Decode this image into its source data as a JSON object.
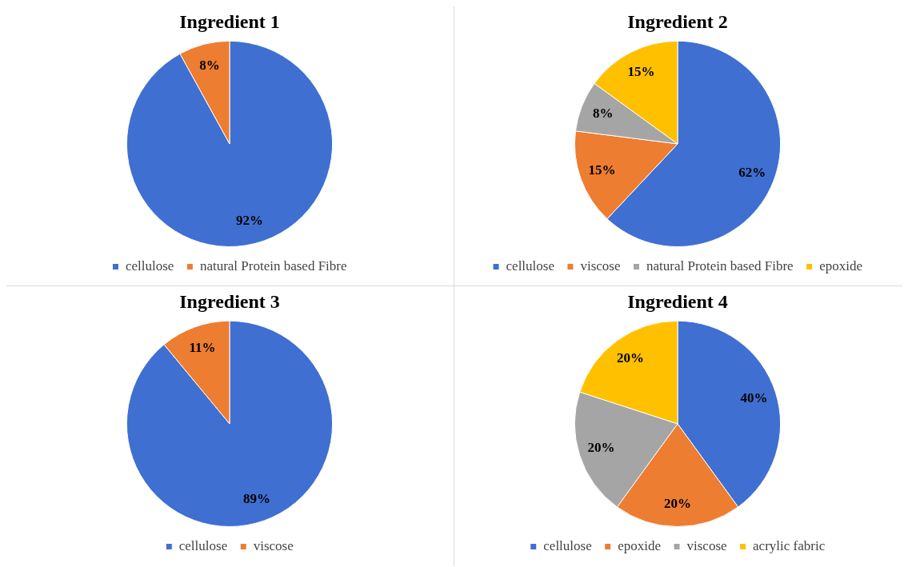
{
  "chart_data": [
    {
      "type": "pie",
      "title": "Ingredient 1",
      "categories": [
        "cellulose",
        "natural Protein based Fibre"
      ],
      "values": [
        92,
        8
      ],
      "colors": [
        "#3f6fd1",
        "#ed7d31"
      ],
      "value_labels": [
        "92%",
        "8%"
      ],
      "legend": "bottom"
    },
    {
      "type": "pie",
      "title": "Ingredient 2",
      "categories": [
        "cellulose",
        "viscose",
        "natural Protein based Fibre",
        "epoxide"
      ],
      "values": [
        62,
        15,
        8,
        15
      ],
      "colors": [
        "#3f6fd1",
        "#ed7d31",
        "#a5a5a5",
        "#ffc000"
      ],
      "value_labels": [
        "62%",
        "15%",
        "8%",
        "15%"
      ],
      "legend": "bottom"
    },
    {
      "type": "pie",
      "title": "Ingredient 3",
      "categories": [
        "cellulose",
        "viscose"
      ],
      "values": [
        89,
        11
      ],
      "colors": [
        "#3f6fd1",
        "#ed7d31"
      ],
      "value_labels": [
        "89%",
        "11%"
      ],
      "legend": "bottom"
    },
    {
      "type": "pie",
      "title": "Ingredient 4",
      "categories": [
        "cellulose",
        "epoxide",
        "viscose",
        "acrylic fabric"
      ],
      "values": [
        40,
        20,
        20,
        20
      ],
      "colors": [
        "#3f6fd1",
        "#ed7d31",
        "#a5a5a5",
        "#ffc000"
      ],
      "value_labels": [
        "40%",
        "20%",
        "20%",
        "20%"
      ],
      "legend": "bottom"
    }
  ]
}
